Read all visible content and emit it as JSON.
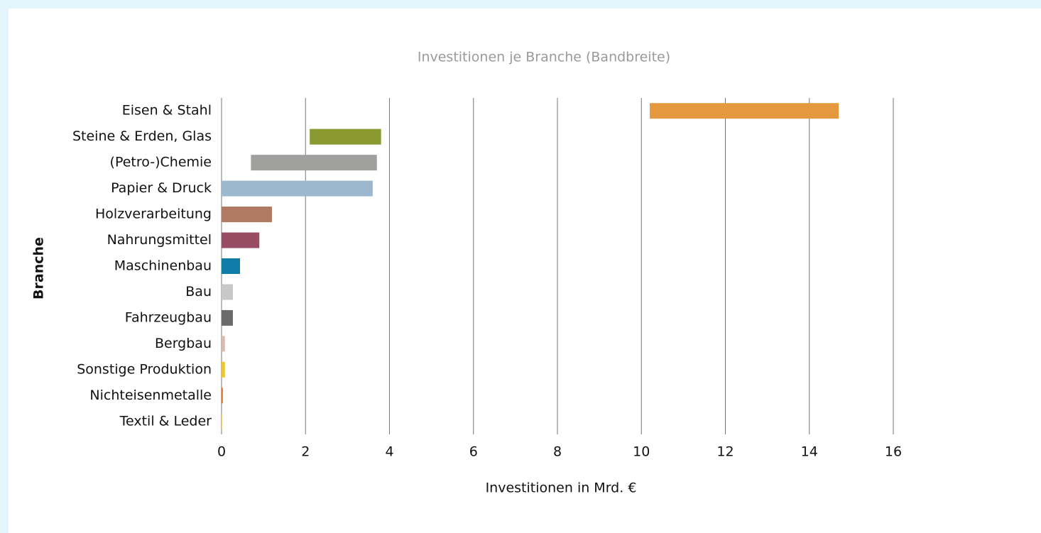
{
  "chart_data": {
    "type": "range-bar",
    "title": "Investitionen je Branche (Bandbreite)",
    "x_label": "Investitionen in Mrd. €",
    "y_label": "Branche",
    "categories": [
      "Eisen & Stahl",
      "Steine & Erden, Glas",
      "(Petro-)Chemie",
      "Papier & Druck",
      "Holzverarbeitung",
      "Nahrungsmittel",
      "Maschinenbau",
      "Bau",
      "Fahrzeugbau",
      "Bergbau",
      "Sonstige Produktion",
      "Nichteisenmetalle",
      "Textil & Leder"
    ],
    "low": [
      10.2,
      2.1,
      0.7,
      0,
      0,
      0,
      0,
      0,
      0,
      0,
      0,
      0,
      0
    ],
    "high": [
      14.7,
      3.8,
      3.7,
      3.6,
      1.2,
      0.9,
      0.44,
      0.27,
      0.27,
      0.08,
      0.08,
      0.03,
      0.02
    ],
    "colors": [
      "#e5993e",
      "#8a9a30",
      "#a0a09f",
      "#9cb8cf",
      "#b07a62",
      "#984c64",
      "#0e7ea8",
      "#c8c8c8",
      "#6b6b6b",
      "#d9b9b1",
      "#f1c232",
      "#e06a30",
      "#f1d38f"
    ],
    "xlim": [
      0,
      16
    ],
    "xticks": [
      0,
      2,
      4,
      6,
      8,
      10,
      12,
      14,
      16
    ],
    "grid": true
  }
}
